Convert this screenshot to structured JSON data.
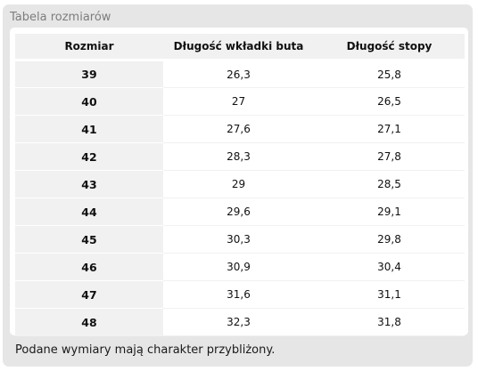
{
  "panel": {
    "title": "Tabela rozmiarów",
    "footnote": "Podane wymiary mają charakter przybliżony."
  },
  "table": {
    "headers": [
      "Rozmiar",
      "Długość wkładki buta",
      "Długość stopy"
    ],
    "rows": [
      {
        "size": "39",
        "insole": "26,3",
        "foot": "25,8"
      },
      {
        "size": "40",
        "insole": "27",
        "foot": "26,5"
      },
      {
        "size": "41",
        "insole": "27,6",
        "foot": "27,1"
      },
      {
        "size": "42",
        "insole": "28,3",
        "foot": "27,8"
      },
      {
        "size": "43",
        "insole": "29",
        "foot": "28,5"
      },
      {
        "size": "44",
        "insole": "29,6",
        "foot": "29,1"
      },
      {
        "size": "45",
        "insole": "30,3",
        "foot": "29,8"
      },
      {
        "size": "46",
        "insole": "30,9",
        "foot": "30,4"
      },
      {
        "size": "47",
        "insole": "31,6",
        "foot": "31,1"
      },
      {
        "size": "48",
        "insole": "32,3",
        "foot": "31,8"
      }
    ]
  },
  "colors": {
    "panel_background": "#e6e6e6",
    "header_background": "#f1f1f1",
    "title_text": "#7d7d7d"
  }
}
